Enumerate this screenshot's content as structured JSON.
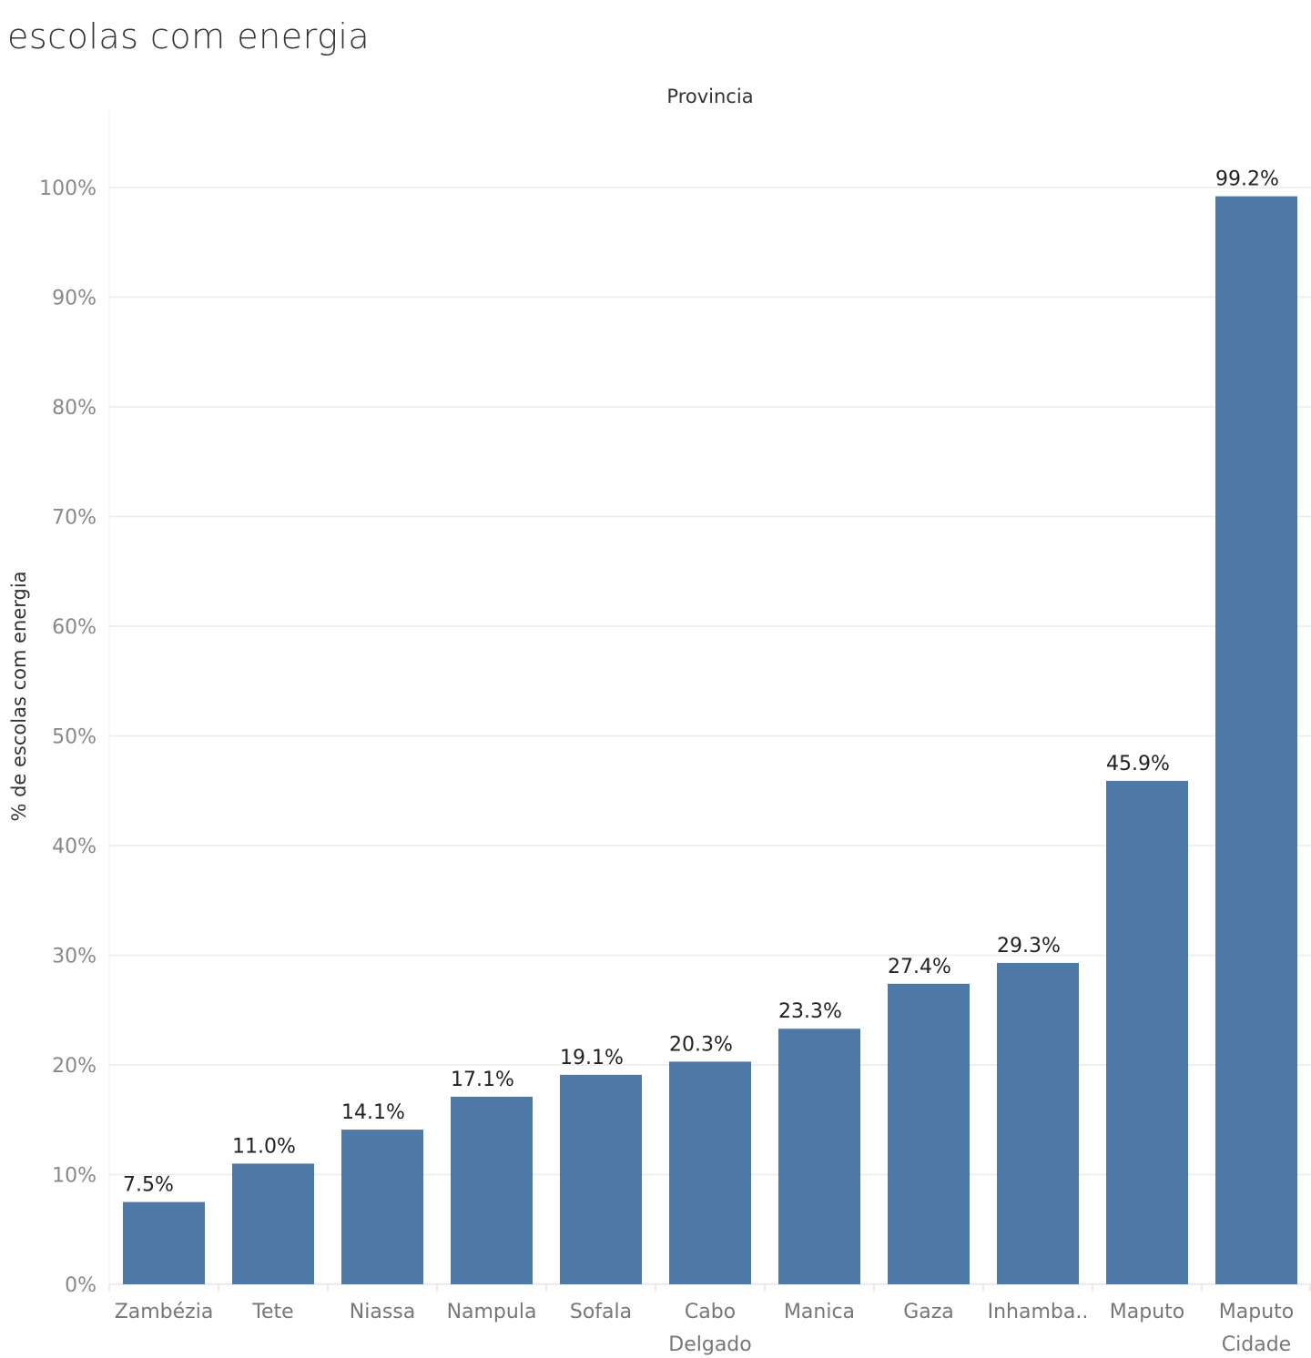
{
  "title": "escolas com energia",
  "chart_data": {
    "type": "bar",
    "title": "escolas com energia",
    "xlabel": "Provincia",
    "ylabel": "% de escolas com energia",
    "categories": [
      [
        "Zambézia"
      ],
      [
        "Tete"
      ],
      [
        "Niassa"
      ],
      [
        "Nampula"
      ],
      [
        "Sofala"
      ],
      [
        "Cabo",
        "Delgado"
      ],
      [
        "Manica"
      ],
      [
        "Gaza"
      ],
      [
        "Inhamba.."
      ],
      [
        "Maputo"
      ],
      [
        "Maputo",
        "Cidade"
      ]
    ],
    "values": [
      7.5,
      11.0,
      14.1,
      17.1,
      19.1,
      20.3,
      23.3,
      27.4,
      29.3,
      45.9,
      99.2
    ],
    "data_labels": [
      "7.5%",
      "11.0%",
      "14.1%",
      "17.1%",
      "19.1%",
      "20.3%",
      "23.3%",
      "27.4%",
      "29.3%",
      "45.9%",
      "99.2%"
    ],
    "yticks": [
      0,
      10,
      20,
      30,
      40,
      50,
      60,
      70,
      80,
      90,
      100
    ],
    "ytick_labels": [
      "0%",
      "10%",
      "20%",
      "30%",
      "40%",
      "50%",
      "60%",
      "70%",
      "80%",
      "90%",
      "100%"
    ],
    "ylim": [
      0,
      107
    ],
    "grid": true,
    "bar_color": "#4e79a7",
    "grid_color": "#ececec"
  }
}
